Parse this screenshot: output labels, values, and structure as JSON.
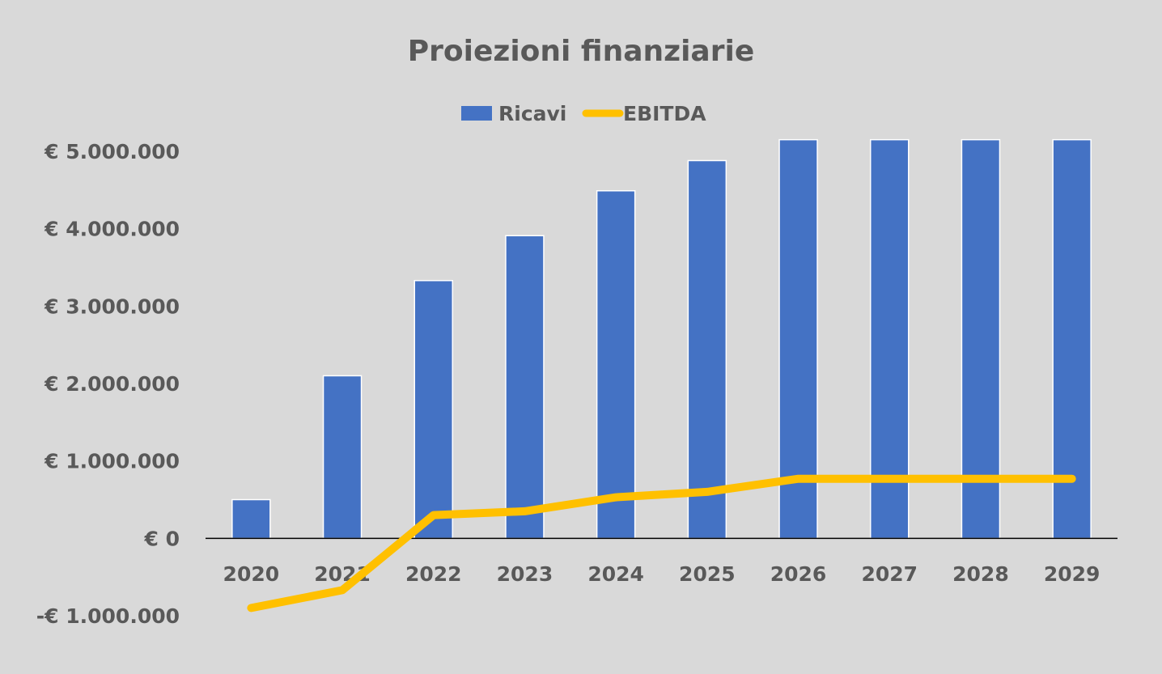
{
  "chart_data": {
    "type": "bar",
    "title": "Proiezioni finanziarie",
    "categories": [
      "2020",
      "2021",
      "2022",
      "2023",
      "2024",
      "2025",
      "2026",
      "2027",
      "2028",
      "2029"
    ],
    "series": [
      {
        "name": "Ricavi",
        "type": "bar",
        "color": "#4472c4",
        "values": [
          500000,
          2100000,
          3330000,
          3910000,
          4490000,
          4880000,
          5150000,
          5150000,
          5150000,
          5150000
        ]
      },
      {
        "name": "EBITDA",
        "type": "line",
        "color": "#ffc000",
        "values": [
          -900000,
          -670000,
          300000,
          350000,
          530000,
          600000,
          770000,
          770000,
          770000,
          770000
        ]
      }
    ],
    "ylim": [
      -1000000,
      5000000
    ],
    "yticks": [
      -1000000,
      0,
      1000000,
      2000000,
      3000000,
      4000000,
      5000000
    ],
    "ytick_labels": [
      "-€ 1.000.000",
      "€ 0",
      "€ 1.000.000",
      "€ 2.000.000",
      "€ 3.000.000",
      "€ 4.000.000",
      "€ 5.000.000"
    ],
    "xlabel": "",
    "ylabel": "",
    "grid": false,
    "legend": "top-center",
    "background": "#d9d9d9",
    "axis_color": "#000000",
    "text_color": "#595959"
  }
}
